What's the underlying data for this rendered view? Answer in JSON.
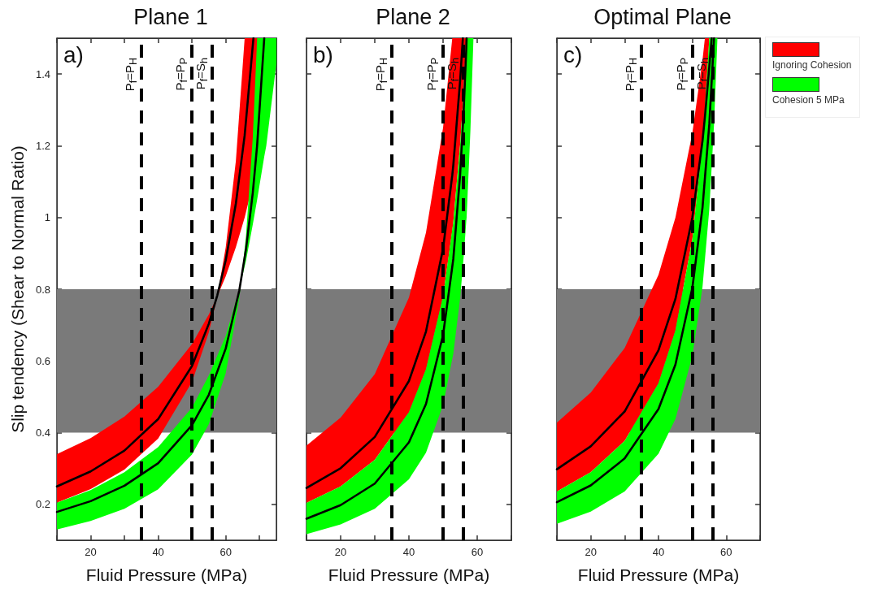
{
  "chart_data": [
    {
      "type": "line",
      "title": "Plane 1",
      "xlabel": "Fluid Pressure (MPa)",
      "ylabel": "Slip tendency (Shear to Normal Ratio)",
      "annotations": [
        "a)"
      ],
      "xlim": [
        10,
        75
      ],
      "ylim": [
        0.1,
        1.5
      ],
      "xticks": [
        {
          "value": 10,
          "label": null
        },
        20,
        {
          "value": 30,
          "label": null
        },
        40,
        {
          "value": 50,
          "label": null
        },
        60,
        {
          "value": 70,
          "label": null
        }
      ],
      "yticks": [
        0.2,
        0.4,
        0.6,
        0.8,
        1,
        1.2,
        1.4
      ],
      "legend": false,
      "line_style": "solid",
      "marker": "none",
      "colors": [
        "#ff0000",
        "#00ff00"
      ],
      "bands": [
        {
          "axis": "y",
          "from": 0.4,
          "to": 0.8,
          "color": "#7a7a7a"
        }
      ],
      "ref_lines": [
        {
          "axis": "x",
          "value": 35,
          "label": "P$_{f}$=P$_{H}$",
          "line_style": "dashed",
          "color": "#000000"
        },
        {
          "axis": "x",
          "value": 50,
          "label": "P$_{f}$=P$_{P}$",
          "line_style": "dashed",
          "color": "#000000"
        },
        {
          "axis": "x",
          "value": 56,
          "label": "P$_{f}$=S$_{h}$",
          "line_style": "dashed",
          "color": "#000000"
        }
      ],
      "series": [
        {
          "color": "#000000",
          "x": [
            10,
            20,
            30,
            40,
            50,
            55,
            57.5,
            60,
            63,
            65.6,
            68.2,
            70,
            75
          ],
          "values": [
            0.25,
            0.292,
            0.35,
            0.438,
            0.586,
            0.704,
            0.783,
            0.881,
            1.039,
            1.229,
            1.5,
            null,
            null
          ],
          "lower": [
            0.205,
            0.243,
            0.297,
            0.384,
            0.541,
            0.68,
            0.78,
            0.917,
            1.158,
            1.5,
            1.5,
            1.5,
            1.5
          ],
          "upper": [
            0.34,
            0.385,
            0.445,
            0.528,
            0.647,
            0.73,
            0.78,
            0.836,
            0.917,
            1.0,
            1.1,
            1.182,
            1.49
          ]
        },
        {
          "color": "#000000",
          "x": [
            10,
            20,
            30,
            40,
            50,
            55,
            60,
            64,
            66,
            68,
            69.3,
            71.4,
            72,
            75
          ],
          "values": [
            0.179,
            0.209,
            0.252,
            0.315,
            0.421,
            0.506,
            0.635,
            0.796,
            0.912,
            1.068,
            1.202,
            1.5,
            null,
            null
          ],
          "lower": [
            0.13,
            0.154,
            0.188,
            0.242,
            0.339,
            0.424,
            0.566,
            0.774,
            0.948,
            1.223,
            1.5,
            1.5,
            1.5,
            1.5
          ],
          "upper": [
            0.205,
            0.24,
            0.29,
            0.36,
            0.47,
            0.56,
            0.67,
            0.8,
            0.88,
            0.98,
            1.05,
            1.17,
            1.2,
            1.43
          ]
        }
      ]
    },
    {
      "type": "line",
      "title": "Plane 2",
      "xlabel": "Fluid Pressure (MPa)",
      "annotations": [
        "b)"
      ],
      "xlim": [
        10,
        70
      ],
      "ylim": [
        0.1,
        1.5
      ],
      "tick_labels": "x",
      "xticks": [
        {
          "value": 10,
          "label": null
        },
        20,
        {
          "value": 30,
          "label": null
        },
        40,
        {
          "value": 50,
          "label": null
        },
        60,
        {
          "value": 70,
          "label": null
        }
      ],
      "yticks": [
        0.2,
        0.4,
        0.6,
        0.8,
        1,
        1.2,
        1.4
      ],
      "legend": false,
      "line_style": "solid",
      "marker": "none",
      "colors": [
        "#ff0000",
        "#00ff00"
      ],
      "bands": [
        {
          "axis": "y",
          "from": 0.4,
          "to": 0.8,
          "color": "#7a7a7a"
        }
      ],
      "ref_lines": [
        {
          "axis": "x",
          "value": 35,
          "label": "P$_{f}$=P$_{H}$",
          "line_style": "dashed",
          "color": "#000000"
        },
        {
          "axis": "x",
          "value": 50,
          "label": "P$_{f}$=P$_{P}$",
          "line_style": "dashed",
          "color": "#000000"
        },
        {
          "axis": "x",
          "value": 56,
          "label": "P$_{f}$=S$_{h}$",
          "line_style": "dashed",
          "color": "#000000"
        }
      ],
      "series": [
        {
          "color": "#000000",
          "x": [
            10,
            20,
            30,
            40,
            45,
            50,
            52.7,
            53,
            55,
            55.8,
            56.8
          ],
          "values": [
            0.246,
            0.301,
            0.388,
            0.544,
            0.682,
            0.913,
            1.118,
            1.146,
            1.382,
            1.5,
            null
          ],
          "lower": [
            0.204,
            0.25,
            0.324,
            0.457,
            0.577,
            0.78,
            0.963,
            0.988,
            1.203,
            1.32,
            1.5
          ],
          "upper": [
            0.364,
            0.442,
            0.563,
            0.777,
            0.958,
            1.25,
            1.5,
            1.5,
            1.5,
            1.5,
            1.5
          ]
        },
        {
          "color": "#000000",
          "x": [
            10,
            20,
            30,
            40,
            45,
            50,
            53,
            55,
            56,
            56.8,
            56.9,
            58,
            58.9
          ],
          "values": [
            0.16,
            0.198,
            0.258,
            0.373,
            0.48,
            0.672,
            0.884,
            1.12,
            1.29,
            1.47,
            1.5,
            null,
            null
          ],
          "lower": [
            0.117,
            0.144,
            0.188,
            0.27,
            0.344,
            0.477,
            0.62,
            0.775,
            0.886,
            0.99,
            1.0,
            1.24,
            1.5
          ],
          "upper": [
            0.204,
            0.25,
            0.324,
            0.457,
            0.577,
            0.78,
            0.988,
            1.203,
            1.35,
            1.5,
            1.5,
            1.5,
            1.5
          ]
        }
      ]
    },
    {
      "type": "line",
      "title": "Optimal Plane",
      "xlabel": "Fluid Pressure (MPa)",
      "annotations": [
        "c)"
      ],
      "xlim": [
        10,
        70
      ],
      "ylim": [
        0.1,
        1.5
      ],
      "tick_labels": "x",
      "xticks": [
        {
          "value": 10,
          "label": null
        },
        20,
        {
          "value": 30,
          "label": null
        },
        40,
        {
          "value": 50,
          "label": null
        },
        60,
        {
          "value": 70,
          "label": null
        }
      ],
      "yticks": [
        0.2,
        0.4,
        0.6,
        0.8,
        1,
        1.2,
        1.4
      ],
      "legend": "top right",
      "line_style": "solid",
      "marker": "none",
      "colors": [
        "#ff0000",
        "#00ff00"
      ],
      "bands": [
        {
          "axis": "y",
          "from": 0.4,
          "to": 0.8,
          "color": "#7a7a7a"
        }
      ],
      "ref_lines": [
        {
          "axis": "x",
          "value": 35,
          "label": "P$_{f}$=P$_{H}$",
          "line_style": "dashed",
          "color": "#000000"
        },
        {
          "axis": "x",
          "value": 50,
          "label": "P$_{f}$=P$_{P}$",
          "line_style": "dashed",
          "color": "#000000"
        },
        {
          "axis": "x",
          "value": 56,
          "label": "P$_{f}$=S$_{h}$",
          "line_style": "dashed",
          "color": "#000000"
        }
      ],
      "series": [
        {
          "name": "Ignoring Cohesion",
          "color": "#000000",
          "x": [
            10,
            20,
            30,
            40,
            45,
            50,
            53,
            53.7,
            55,
            55.7
          ],
          "values": [
            0.298,
            0.362,
            0.459,
            0.63,
            0.773,
            1.0,
            1.214,
            1.28,
            1.42,
            1.5
          ],
          "lower": [
            0.236,
            0.29,
            0.377,
            0.538,
            0.685,
            0.94,
            1.21,
            1.3,
            1.5,
            1.5
          ],
          "upper": [
            0.428,
            0.512,
            0.636,
            0.84,
            1.0,
            1.236,
            1.44,
            1.5,
            1.5,
            1.5
          ]
        },
        {
          "name": "Cohesion 5 MPa",
          "color": "#000000",
          "x": [
            10,
            20,
            30,
            40,
            45,
            50,
            53,
            55,
            56.4,
            57.4
          ],
          "values": [
            0.206,
            0.253,
            0.328,
            0.466,
            0.59,
            0.804,
            1.028,
            1.26,
            1.5,
            null
          ],
          "lower": [
            0.146,
            0.18,
            0.236,
            0.341,
            0.438,
            0.614,
            0.807,
            1.023,
            1.26,
            1.5
          ],
          "upper": [
            0.236,
            0.29,
            0.377,
            0.538,
            0.685,
            0.94,
            1.21,
            1.5,
            1.5,
            1.5
          ]
        }
      ]
    }
  ]
}
